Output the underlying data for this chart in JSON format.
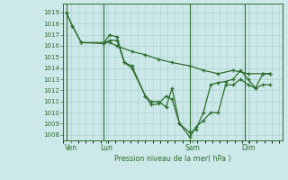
{
  "background_color": "#cce8e8",
  "grid_color": "#aad0d0",
  "line_color": "#2d6e2d",
  "ylabel_ticks": [
    1008,
    1009,
    1010,
    1011,
    1012,
    1013,
    1014,
    1015,
    1016,
    1017,
    1018,
    1019
  ],
  "ylim": [
    1007.5,
    1019.8
  ],
  "xlim": [
    -0.2,
    14.5
  ],
  "xlabel": "Pression niveau de la mer( hPa )",
  "day_labels": [
    "Ven",
    "Lun",
    "Sam",
    "Dim"
  ],
  "day_positions": [
    0.3,
    2.7,
    8.5,
    12.2
  ],
  "vline_positions": [
    0.0,
    2.5,
    8.3,
    12.0
  ],
  "series1_x": [
    0.0,
    0.4,
    1.0,
    2.5,
    2.9,
    3.4,
    3.9,
    4.4,
    5.3,
    5.7,
    6.2,
    6.7,
    7.1,
    7.6,
    8.3,
    8.7,
    9.2,
    9.7,
    10.2,
    10.7,
    11.2,
    11.7,
    12.2,
    12.7,
    13.2,
    13.7
  ],
  "series1_y": [
    1019.0,
    1017.8,
    1016.3,
    1016.2,
    1017.0,
    1016.8,
    1014.5,
    1014.2,
    1011.5,
    1011.0,
    1011.0,
    1010.5,
    1012.2,
    1009.0,
    1008.2,
    1008.5,
    1010.0,
    1012.5,
    1012.7,
    1012.8,
    1013.0,
    1013.8,
    1013.0,
    1012.2,
    1013.5,
    1013.5
  ],
  "series2_x": [
    0.0,
    0.4,
    1.0,
    2.5,
    2.9,
    3.4,
    4.4,
    5.3,
    6.2,
    7.1,
    8.3,
    9.2,
    10.2,
    11.2,
    12.2,
    13.2,
    13.7
  ],
  "series2_y": [
    1019.0,
    1017.8,
    1016.3,
    1016.3,
    1016.3,
    1016.0,
    1015.5,
    1015.2,
    1014.8,
    1014.5,
    1014.2,
    1013.8,
    1013.5,
    1013.8,
    1013.5,
    1013.5,
    1013.5
  ],
  "series3_x": [
    2.5,
    2.9,
    3.4,
    3.9,
    4.4,
    5.3,
    5.7,
    6.2,
    6.7,
    7.1,
    7.6,
    8.3,
    8.7,
    9.2,
    9.7,
    10.2,
    10.7,
    11.2,
    11.7,
    12.2,
    12.7,
    13.2,
    13.7
  ],
  "series3_y": [
    1016.2,
    1016.5,
    1016.5,
    1014.5,
    1014.0,
    1011.5,
    1010.7,
    1010.8,
    1011.5,
    1011.2,
    1009.0,
    1007.8,
    1008.7,
    1009.3,
    1010.0,
    1010.0,
    1012.5,
    1012.5,
    1013.0,
    1012.5,
    1012.2,
    1012.5,
    1012.5
  ]
}
